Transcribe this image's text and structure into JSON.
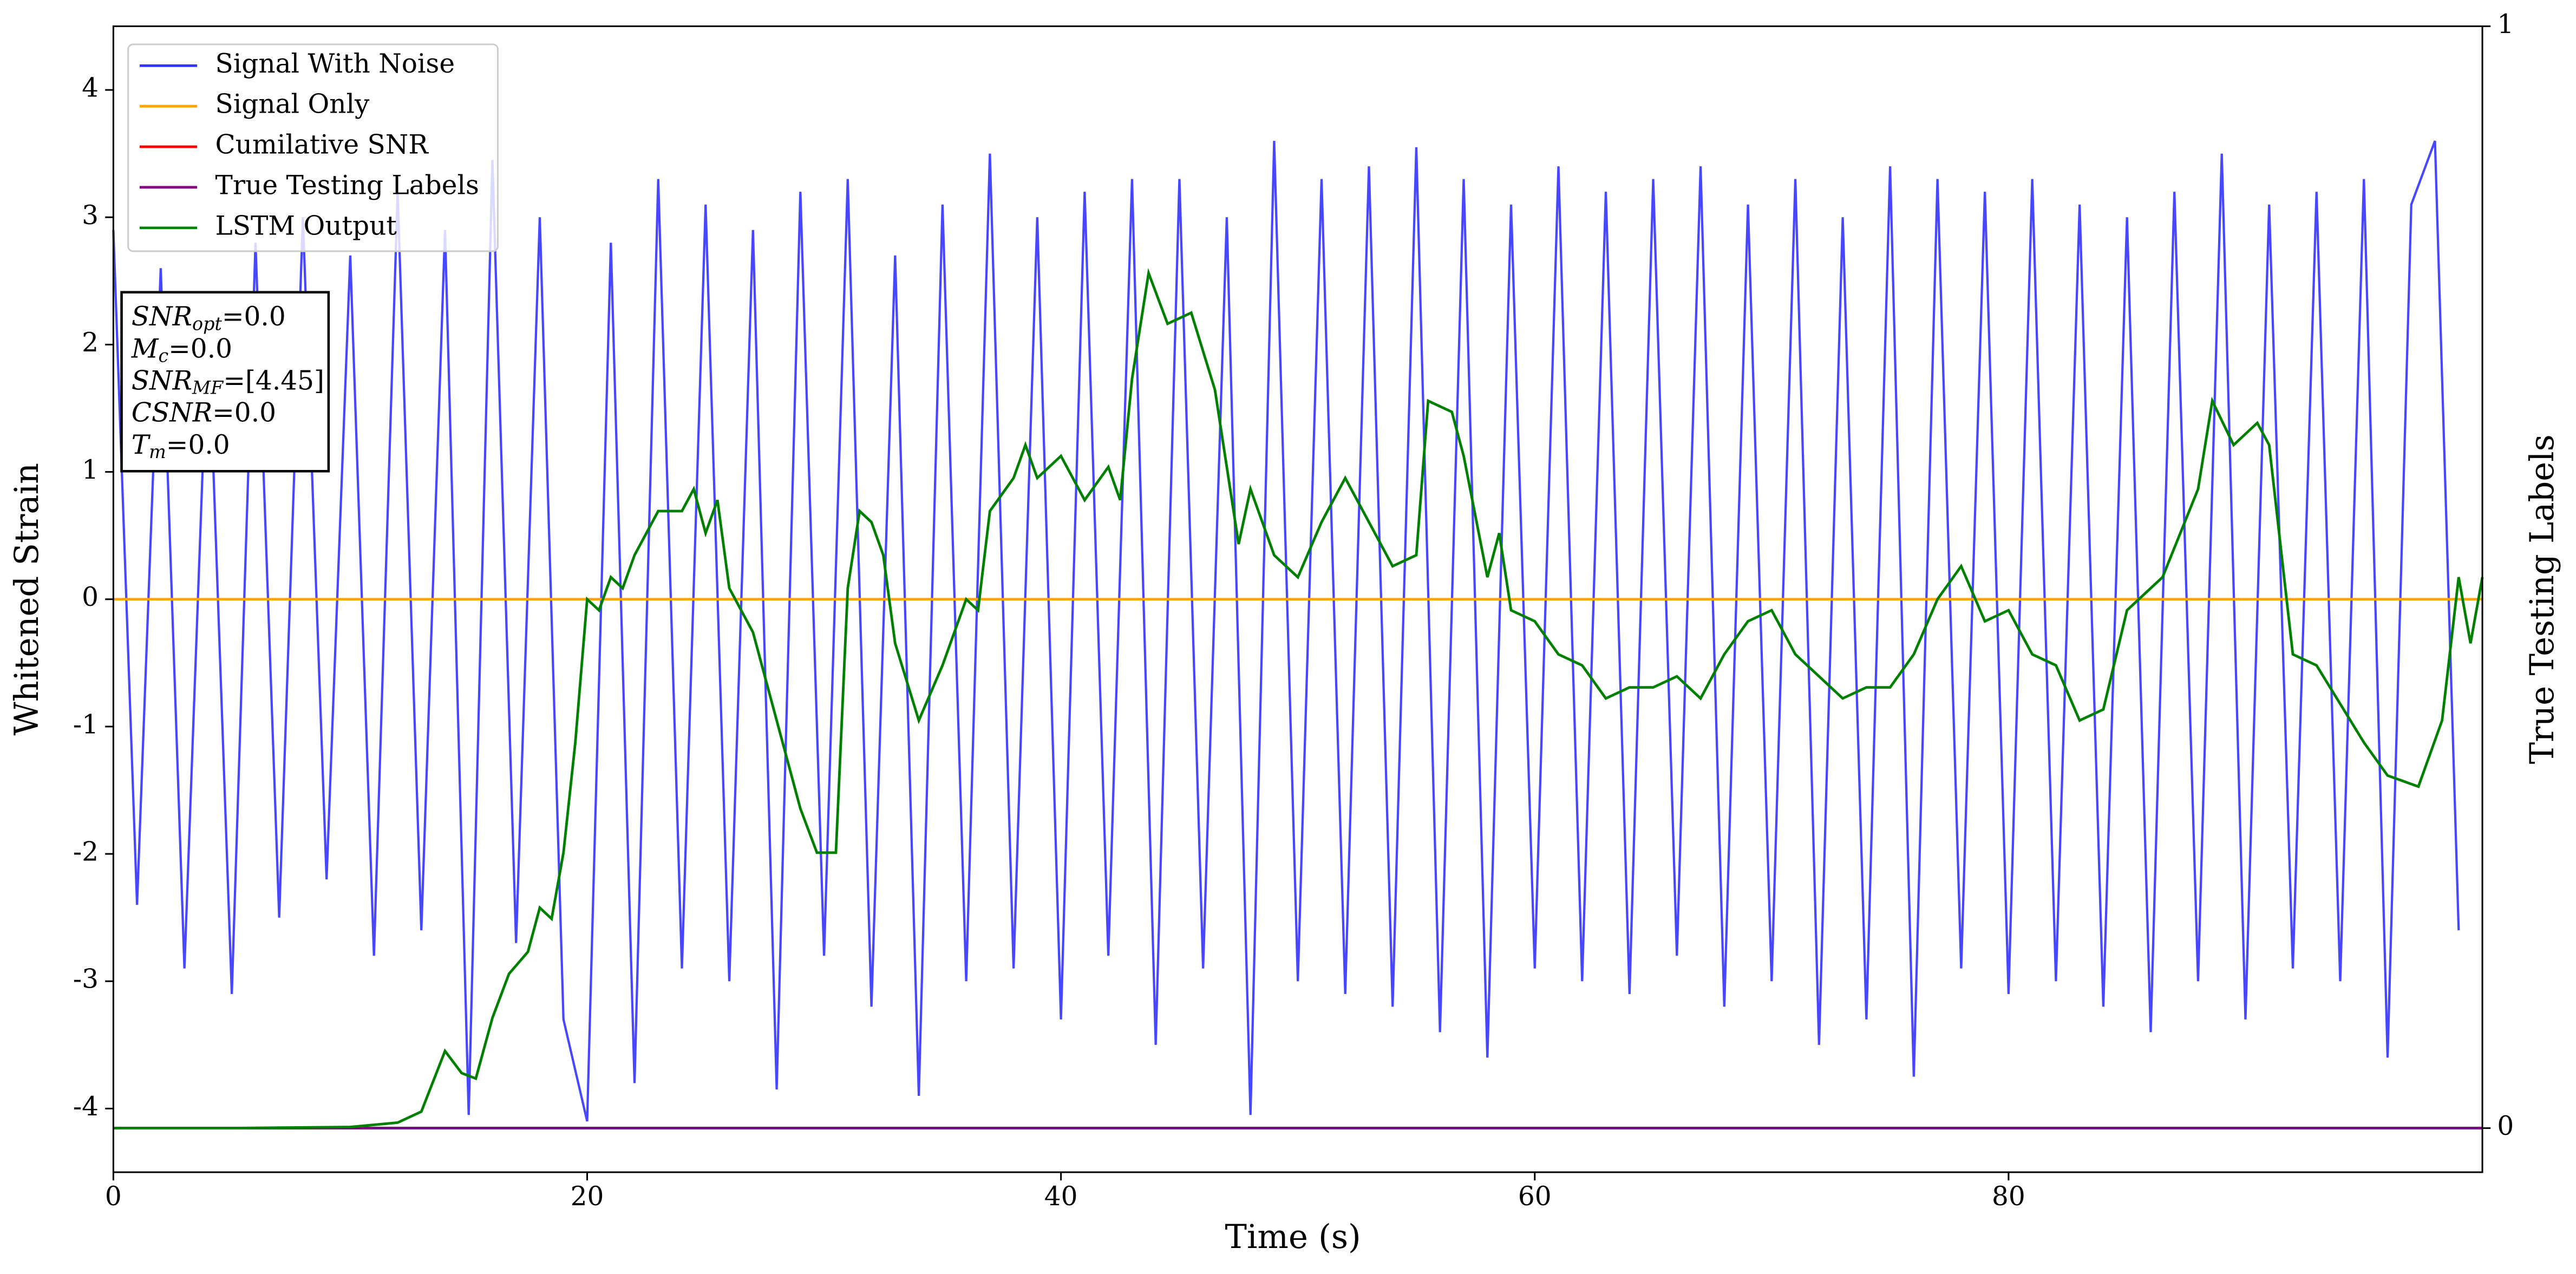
{
  "chart_data": {
    "type": "line",
    "xlabel": "Time (s)",
    "ylabel": "Whitened Strain",
    "y2label": "True Testing Labels",
    "xlim": [
      0,
      100
    ],
    "xticks": [
      0,
      20,
      40,
      60,
      80
    ],
    "ylim": [
      -4.5,
      4.5
    ],
    "yticks": [
      -4,
      -3,
      -2,
      -1,
      0,
      1,
      2,
      3,
      4
    ],
    "y2lim": [
      -0.04,
      1.0
    ],
    "y2ticks": [
      0,
      1
    ],
    "legend": "upper left",
    "series": [
      {
        "name": "Signal With Noise",
        "color": "#3333ff",
        "x": [
          0,
          1,
          2,
          3,
          4,
          5,
          6,
          7,
          8,
          9,
          10,
          11,
          12,
          13,
          14,
          15,
          16,
          17,
          18,
          19,
          20,
          21,
          22,
          23,
          24,
          25,
          26,
          27,
          28,
          29,
          30,
          31,
          32,
          33,
          34,
          35,
          36,
          37,
          38,
          39,
          40,
          41,
          42,
          43,
          44,
          45,
          46,
          47,
          48,
          49,
          50,
          51,
          52,
          53,
          54,
          55,
          56,
          57,
          58,
          59,
          60,
          61,
          62,
          63,
          64,
          65,
          66,
          67,
          68,
          69,
          70,
          71,
          72,
          73,
          74,
          75,
          76,
          77,
          78,
          79,
          80,
          81,
          82,
          83,
          84,
          85,
          86,
          87,
          88,
          89,
          90,
          91,
          92,
          93,
          94,
          95,
          96,
          97,
          98,
          99
        ],
        "values": [
          2.9,
          -2.4,
          2.6,
          -2.9,
          2.2,
          -3.1,
          2.8,
          -2.5,
          3.0,
          -2.2,
          2.7,
          -2.8,
          3.2,
          -2.6,
          2.9,
          -4.05,
          3.45,
          -2.7,
          3.0,
          -3.3,
          -4.1,
          2.8,
          -3.8,
          3.3,
          -2.9,
          3.1,
          -3.0,
          2.9,
          -3.85,
          3.2,
          -2.8,
          3.3,
          -3.2,
          2.7,
          -3.9,
          3.1,
          -3.0,
          3.5,
          -2.9,
          3.0,
          -3.3,
          3.2,
          -2.8,
          3.3,
          -3.5,
          3.3,
          -2.9,
          3.0,
          -4.05,
          3.6,
          -3.0,
          3.3,
          -3.1,
          3.4,
          -3.2,
          3.55,
          -3.4,
          3.3,
          -3.6,
          3.1,
          -2.9,
          3.4,
          -3.0,
          3.2,
          -3.1,
          3.3,
          -2.8,
          3.4,
          -3.2,
          3.1,
          -3.0,
          3.3,
          -3.5,
          3.0,
          -3.3,
          3.4,
          -3.75,
          3.3,
          -2.9,
          3.2,
          -3.1,
          3.3,
          -3.0,
          3.1,
          -3.2,
          3.0,
          -3.4,
          3.2,
          -3.0,
          3.5,
          -3.3,
          3.1,
          -2.9,
          3.2,
          -3.0,
          3.3,
          -3.6,
          3.1,
          3.6,
          -2.6
        ]
      },
      {
        "name": "Signal Only",
        "color": "#ffa500",
        "x": [
          0,
          100
        ],
        "values": [
          0,
          0
        ]
      },
      {
        "name": "Cumilative SNR",
        "color": "#ff0000",
        "axis": "y2",
        "x": [
          0,
          100
        ],
        "values": [
          0,
          0
        ]
      },
      {
        "name": "True Testing Labels",
        "color": "#800080",
        "axis": "y2",
        "x": [
          0,
          100
        ],
        "values": [
          0,
          0
        ]
      },
      {
        "name": "LSTM Output",
        "color": "#008000",
        "axis": "y2",
        "x": [
          0,
          5,
          10,
          12,
          13,
          14,
          14.7,
          15.3,
          16,
          16.7,
          17.5,
          18,
          18.5,
          19,
          19.5,
          20,
          20.5,
          21,
          21.5,
          22,
          23,
          24,
          24.5,
          25,
          25.5,
          26,
          27,
          28,
          28.5,
          29,
          29.7,
          30.5,
          31,
          31.5,
          32,
          32.5,
          33,
          34,
          35,
          36,
          36.5,
          37,
          38,
          38.5,
          39,
          40,
          41,
          42,
          42.5,
          43,
          43.7,
          44.5,
          45.5,
          46.5,
          47.5,
          48,
          49,
          50,
          51,
          52,
          53,
          54,
          55,
          55.5,
          56.5,
          57,
          58,
          58.5,
          59,
          60,
          61,
          62,
          63,
          64,
          65,
          66,
          67,
          68,
          69,
          70,
          71,
          72,
          73,
          74,
          75,
          76,
          77,
          78,
          79,
          80,
          81,
          82,
          83,
          84,
          85,
          86.5,
          88,
          88.6,
          89.5,
          90.5,
          91,
          92,
          93,
          95,
          96,
          97.3,
          98.3,
          99,
          99.5,
          100
        ],
        "values": [
          0,
          0,
          0.001,
          0.005,
          0.015,
          0.07,
          0.05,
          0.045,
          0.1,
          0.14,
          0.16,
          0.2,
          0.19,
          0.25,
          0.35,
          0.48,
          0.47,
          0.5,
          0.49,
          0.52,
          0.56,
          0.56,
          0.58,
          0.54,
          0.57,
          0.49,
          0.45,
          0.37,
          0.33,
          0.29,
          0.25,
          0.25,
          0.49,
          0.56,
          0.55,
          0.52,
          0.44,
          0.37,
          0.42,
          0.48,
          0.47,
          0.56,
          0.59,
          0.62,
          0.59,
          0.61,
          0.57,
          0.6,
          0.57,
          0.68,
          0.776,
          0.73,
          0.74,
          0.67,
          0.53,
          0.58,
          0.52,
          0.5,
          0.55,
          0.59,
          0.55,
          0.51,
          0.52,
          0.66,
          0.65,
          0.61,
          0.5,
          0.54,
          0.47,
          0.46,
          0.43,
          0.42,
          0.39,
          0.4,
          0.4,
          0.41,
          0.39,
          0.43,
          0.46,
          0.47,
          0.43,
          0.41,
          0.39,
          0.4,
          0.4,
          0.43,
          0.48,
          0.51,
          0.46,
          0.47,
          0.43,
          0.42,
          0.37,
          0.38,
          0.47,
          0.5,
          0.58,
          0.66,
          0.62,
          0.64,
          0.62,
          0.43,
          0.42,
          0.35,
          0.32,
          0.31,
          0.37,
          0.5,
          0.44,
          0.5
        ]
      }
    ],
    "annotations": [
      {
        "text": "SNR",
        "sub": "opt",
        "value": "=0.0"
      },
      {
        "text": "M",
        "sub": "c",
        "value": "=0.0"
      },
      {
        "text": "SNR",
        "sub": "MF",
        "value": "=[4.45]"
      },
      {
        "text": "CSNR",
        "value": "=0.0"
      },
      {
        "text": "T",
        "sub": "m",
        "value": "=0.0"
      }
    ]
  }
}
